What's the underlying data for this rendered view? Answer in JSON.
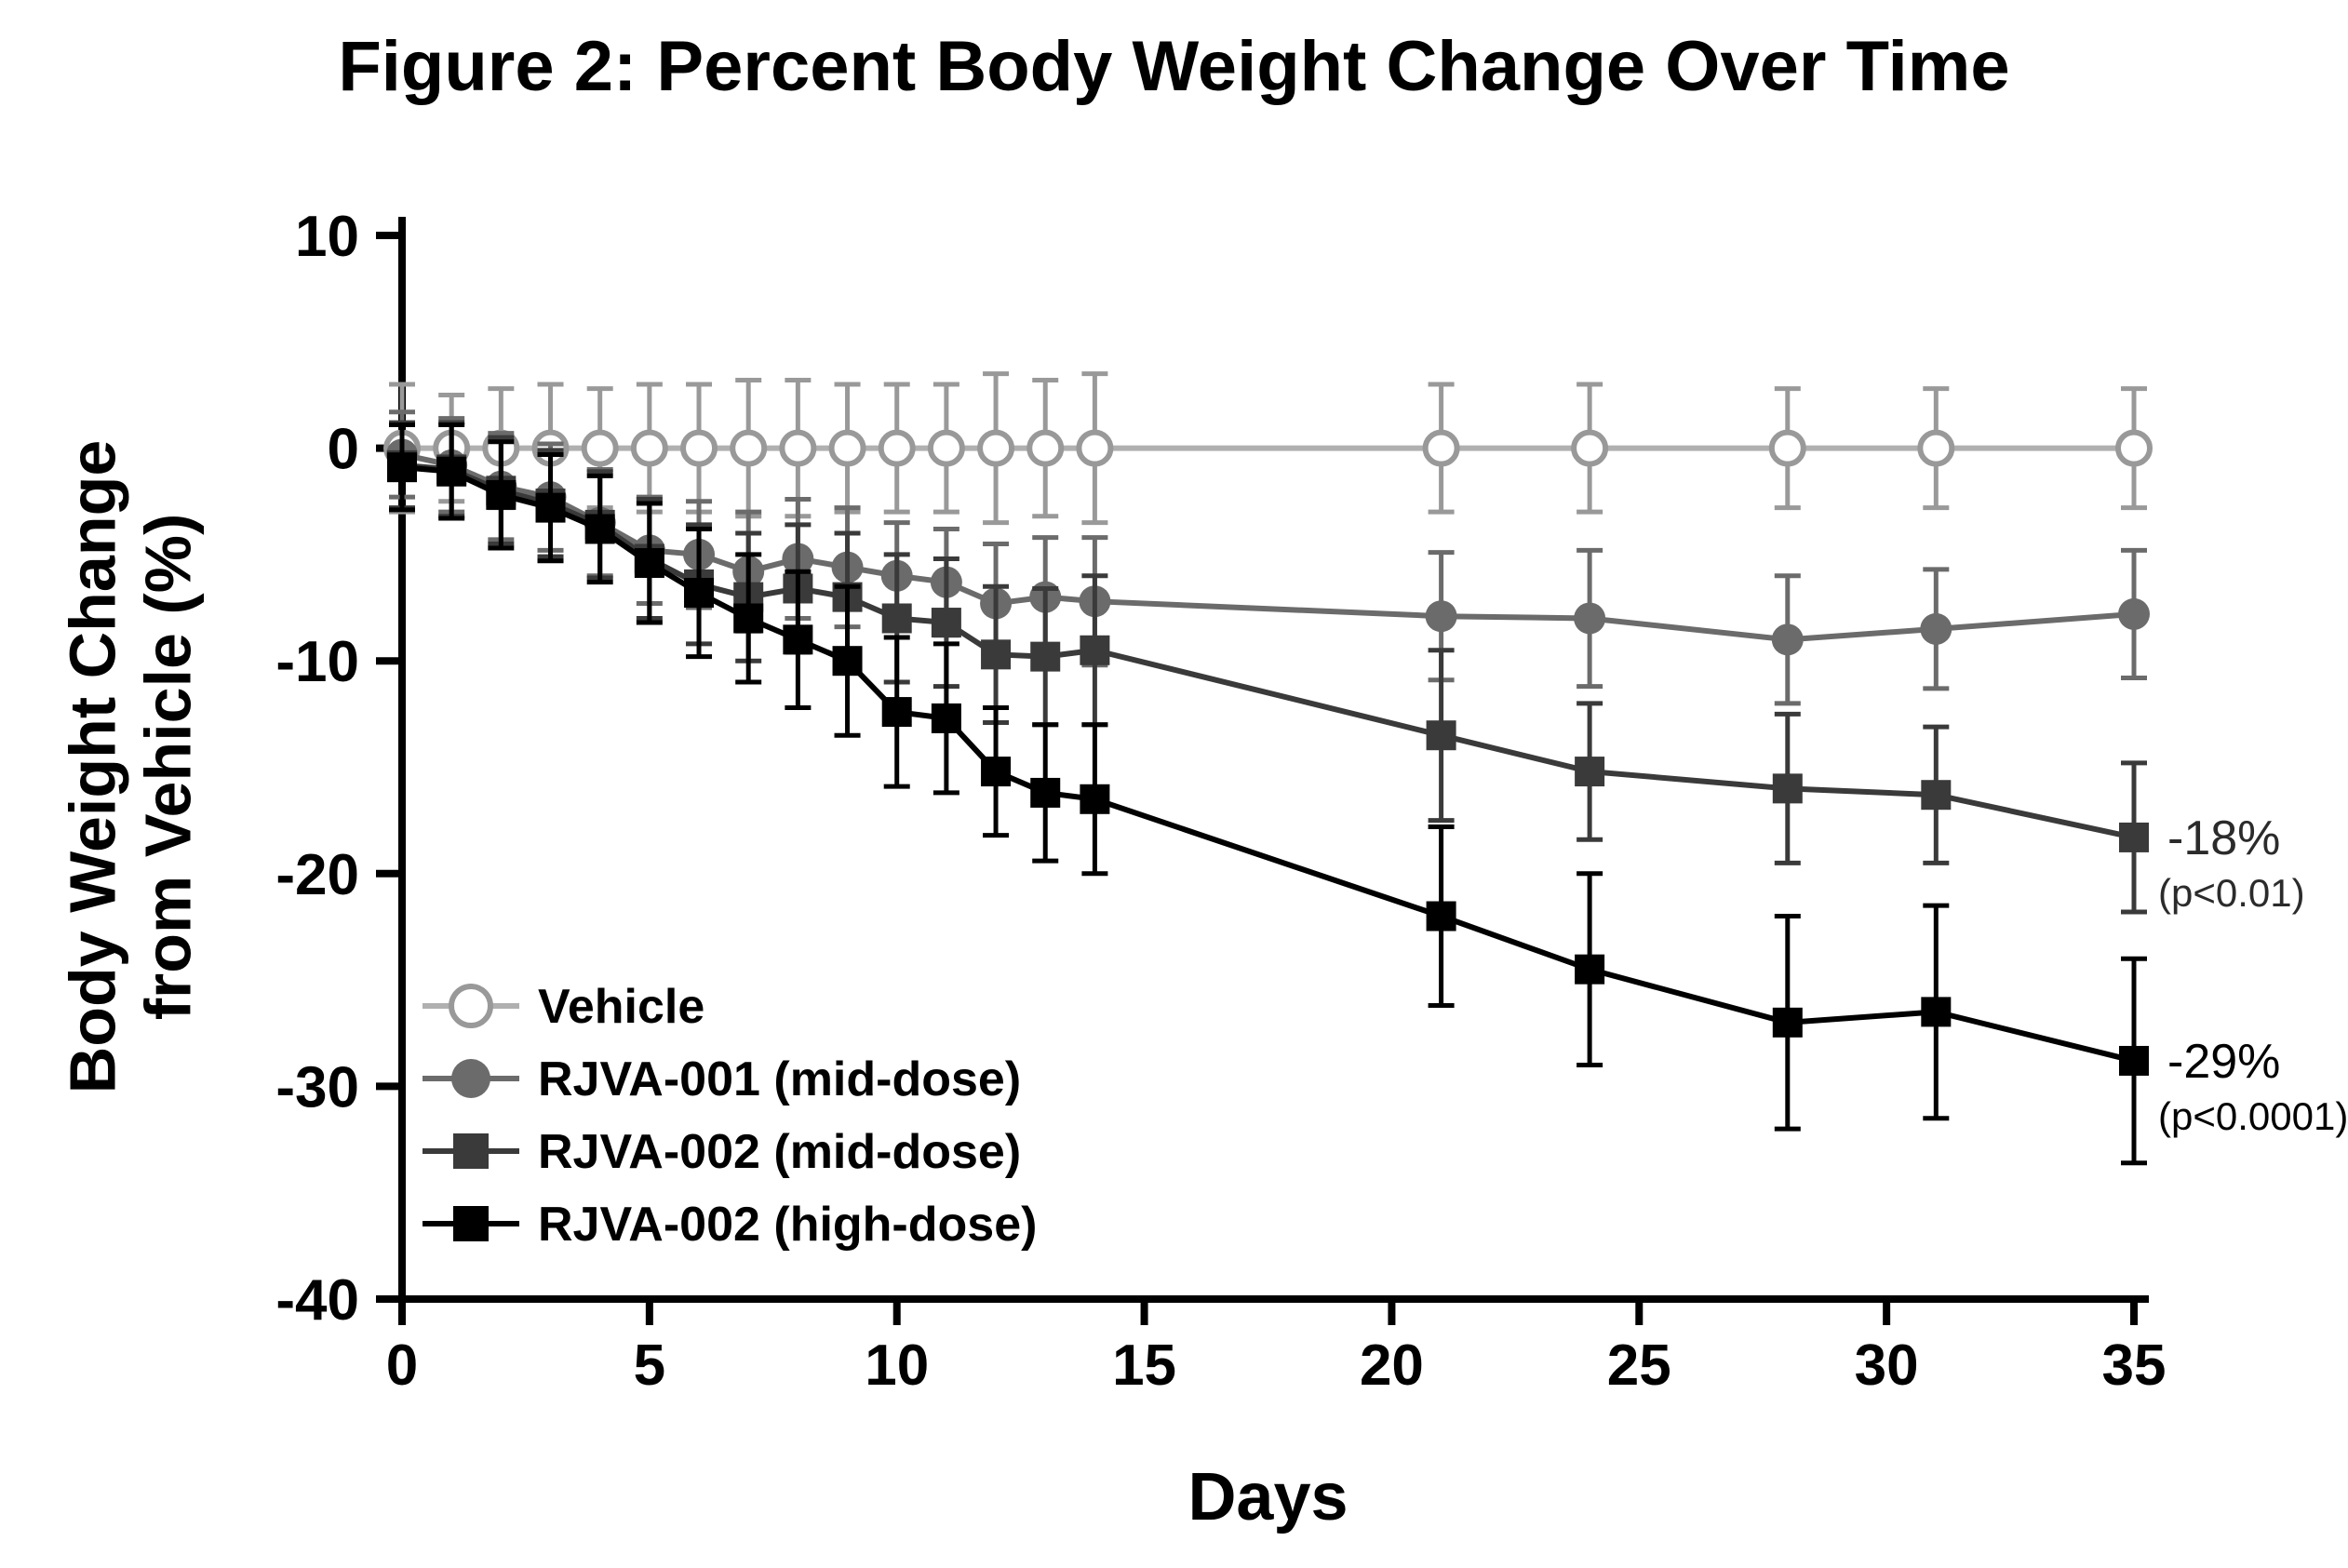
{
  "chart_data": {
    "type": "line",
    "title": "Figure 2: Percent Body Weight Change Over Time",
    "xlabel": "Days",
    "ylabel": "Body Weight Change\nfrom Vehicle (%)",
    "xlim": [
      0,
      35
    ],
    "ylim": [
      -40,
      10
    ],
    "xticks": [
      0,
      5,
      10,
      15,
      20,
      25,
      30,
      35
    ],
    "yticks": [
      10,
      0,
      -10,
      -20,
      -30,
      -40
    ],
    "grid": false,
    "axis_color": "#000000",
    "background": "#ffffff",
    "legend_position": "inside-lower-left",
    "x": [
      0,
      1,
      2,
      3,
      4,
      5,
      6,
      7,
      8,
      9,
      10,
      11,
      12,
      13,
      14,
      21,
      24,
      28,
      31,
      35
    ],
    "series": [
      {
        "name": "Vehicle",
        "marker": "circle-open",
        "color": "#999999",
        "line_color": "#b0b0b0",
        "values": [
          0,
          0,
          0,
          0,
          0,
          0,
          0,
          0,
          0,
          0,
          0,
          0,
          0,
          0,
          0,
          0,
          0,
          0,
          0,
          0
        ],
        "errors": [
          3,
          2.5,
          2.8,
          3,
          2.8,
          3,
          3,
          3.2,
          3.2,
          3,
          3,
          3,
          3.5,
          3.2,
          3.5,
          3,
          3,
          2.8,
          2.8,
          2.8
        ]
      },
      {
        "name": "RJVA-001 (mid-dose)",
        "marker": "circle",
        "color": "#6b6b6b",
        "values": [
          -0.3,
          -0.8,
          -1.8,
          -2.3,
          -3.5,
          -4.8,
          -5,
          -5.8,
          -5.2,
          -5.6,
          -6,
          -6.3,
          -7.3,
          -7,
          -7.2,
          -7.9,
          -8,
          -9,
          -8.5,
          -7.8
        ],
        "errors": [
          2,
          2.2,
          2.5,
          2.5,
          2.5,
          2.5,
          2.5,
          2.8,
          2.8,
          2.8,
          2.5,
          2.5,
          2.8,
          2.8,
          3,
          3,
          3.2,
          3,
          2.8,
          3
        ]
      },
      {
        "name": "RJVA-002 (mid-dose)",
        "marker": "square",
        "color": "#3a3a3a",
        "values": [
          -0.8,
          -1,
          -2,
          -2.6,
          -3.6,
          -5.2,
          -6.4,
          -7,
          -6.6,
          -7,
          -8,
          -8.2,
          -9.7,
          -9.8,
          -9.5,
          -13.5,
          -15.2,
          -16,
          -16.3,
          -18.3
        ],
        "errors": [
          2,
          2.2,
          2.5,
          2.5,
          2.5,
          2.8,
          2.8,
          3,
          3,
          3,
          3,
          3,
          3.2,
          3.2,
          3.5,
          4,
          3.2,
          3.5,
          3.2,
          3.5
        ]
      },
      {
        "name": "RJVA-002 (high-dose)",
        "marker": "square",
        "color": "#000000",
        "values": [
          -0.9,
          -1.1,
          -2.2,
          -2.8,
          -3.8,
          -5.4,
          -6.8,
          -8,
          -9,
          -10,
          -12.4,
          -12.7,
          -15.2,
          -16.2,
          -16.5,
          -22,
          -24.5,
          -27,
          -26.5,
          -28.8
        ],
        "errors": [
          2,
          2.2,
          2.5,
          2.5,
          2.5,
          2.8,
          3,
          3,
          3.2,
          3.5,
          3.5,
          3.5,
          3,
          3.2,
          3.5,
          4.2,
          4.5,
          5,
          5,
          4.8
        ]
      }
    ],
    "annotations": [
      {
        "text": "-18%",
        "subtext": "(p<0.01)",
        "y": -18.3,
        "color": "#2b2b2b"
      },
      {
        "text": "-29%",
        "subtext": "(p<0.0001)",
        "y": -28.8,
        "color": "#000000"
      }
    ]
  }
}
